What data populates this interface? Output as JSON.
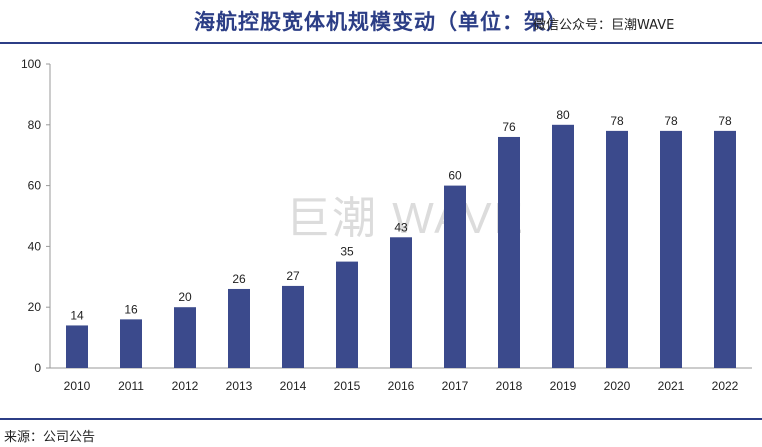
{
  "header": {
    "title": "海航控股宽体机规模变动（单位：架）",
    "wechat": "微信公众号：巨潮WAVE"
  },
  "watermark": "巨潮 WAVE",
  "footer": {
    "source": "来源：公司公告"
  },
  "colors": {
    "bar": "#3b4a8c",
    "accent": "#2c3e86",
    "axis": "#999999",
    "text": "#222222"
  },
  "chart_data": {
    "type": "bar",
    "title": "海航控股宽体机规模变动（单位：架）",
    "xlabel": "",
    "ylabel": "",
    "categories": [
      "2010",
      "2011",
      "2012",
      "2013",
      "2014",
      "2015",
      "2016",
      "2017",
      "2018",
      "2019",
      "2020",
      "2021",
      "2022"
    ],
    "values": [
      14,
      16,
      20,
      26,
      27,
      35,
      43,
      60,
      76,
      80,
      78,
      78,
      78
    ],
    "ylim": [
      0,
      100
    ],
    "yticks": [
      0,
      20,
      40,
      60,
      80,
      100
    ],
    "grid": false,
    "data_labels": true
  }
}
